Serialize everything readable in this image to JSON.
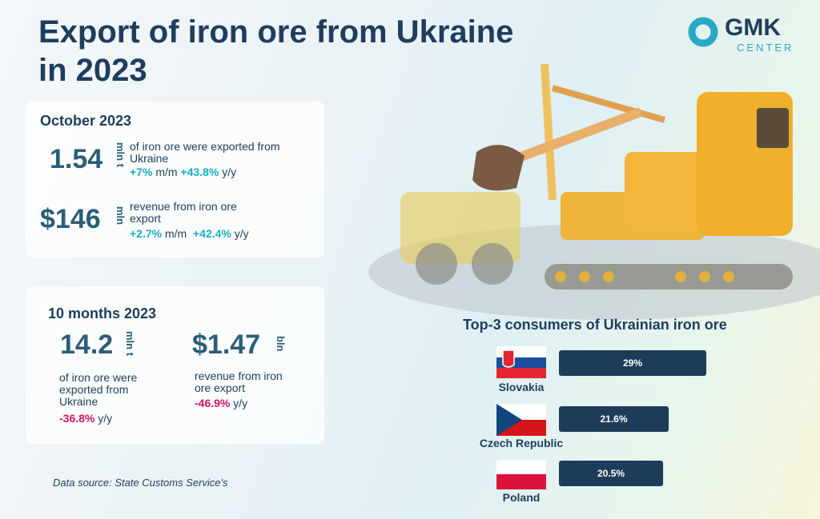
{
  "header": {
    "title_lines": [
      "Export of iron ore from Ukraine",
      "in 2023"
    ]
  },
  "logo": {
    "name": "GMK",
    "sub": "CENTER"
  },
  "october": {
    "heading": "October 2023",
    "items": [
      {
        "value": "1.54",
        "unit": "mln t",
        "desc": "of iron ore were exported from Ukraine",
        "mm": "+7%",
        "mm_label": "m/m",
        "yy": "+43.8%",
        "yy_label": "y/y"
      },
      {
        "value": "$146",
        "unit": "mln",
        "desc": "revenue from iron ore export",
        "mm": "+2.7%",
        "mm_label": "m/m",
        "yy": "+42.4%",
        "yy_label": "y/y"
      }
    ]
  },
  "ten_months": {
    "heading": "10 months 2023",
    "items": [
      {
        "value": "14.2",
        "unit": "mln t",
        "desc": "of iron ore were exported from Ukraine",
        "yy": "-36.8%",
        "yy_label": "y/y"
      },
      {
        "value": "$1.47",
        "unit": "bln",
        "desc": "revenue from iron ore export",
        "yy": "-46.9%",
        "yy_label": "y/y"
      }
    ]
  },
  "source": "Data source: State Customs Service's",
  "chart_data": {
    "type": "bar",
    "title": "Top-3 consumers of Ukrainian iron ore",
    "categories": [
      "Slovakia",
      "Czech Republic",
      "Poland"
    ],
    "values": [
      29,
      21.6,
      20.5
    ],
    "value_labels": [
      "29%",
      "21.6%",
      "20.5%"
    ],
    "color": "#1d3c5a"
  }
}
